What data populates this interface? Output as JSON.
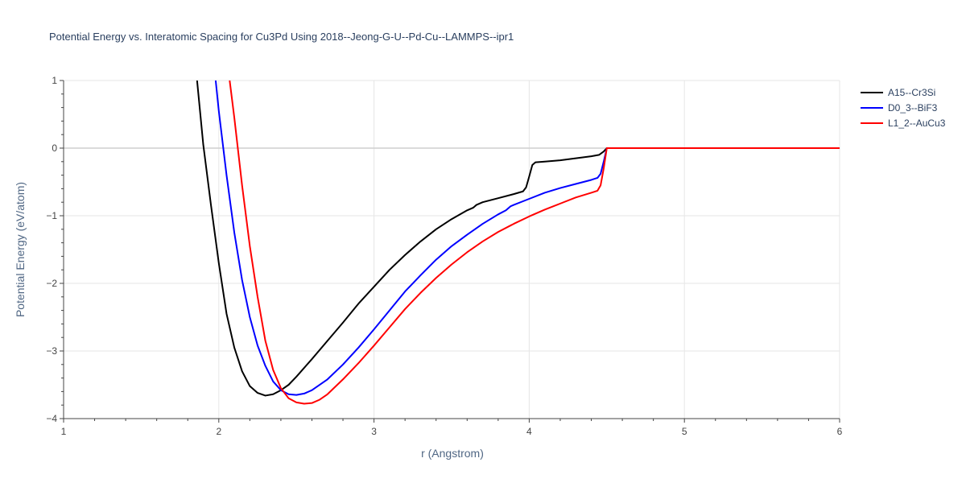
{
  "chart_data": {
    "type": "line",
    "title": "Potential Energy vs. Interatomic Spacing for Cu3Pd Using 2018--Jeong-G-U--Pd-Cu--LAMMPS--ipr1",
    "xlabel": "r (Angstrom)",
    "ylabel": "Potential Energy (eV/atom)",
    "xlim": [
      1,
      6
    ],
    "ylim": [
      -4,
      1
    ],
    "xticks": [
      1,
      2,
      3,
      4,
      5,
      6
    ],
    "yticks": [
      1,
      0,
      -1,
      -2,
      -3,
      -4
    ],
    "xtick_labels": [
      "1",
      "2",
      "3",
      "4",
      "5",
      "6"
    ],
    "ytick_labels": [
      "1",
      "0",
      "−1",
      "−2",
      "−3",
      "−4"
    ],
    "grid": true,
    "legend_position": "top-right",
    "series": [
      {
        "name": "A15--Cr3Si",
        "color": "#000000",
        "x": [
          1.86,
          1.9,
          1.95,
          2.0,
          2.05,
          2.1,
          2.15,
          2.2,
          2.25,
          2.3,
          2.35,
          2.4,
          2.45,
          2.5,
          2.6,
          2.7,
          2.8,
          2.9,
          3.0,
          3.1,
          3.2,
          3.3,
          3.4,
          3.5,
          3.6,
          3.64,
          3.66,
          3.7,
          3.8,
          3.9,
          3.96,
          3.98,
          4.0,
          4.02,
          4.04,
          4.1,
          4.2,
          4.3,
          4.4,
          4.45,
          4.48,
          4.5,
          5.0,
          5.5,
          6.0
        ],
        "y": [
          1.0,
          0.05,
          -0.85,
          -1.7,
          -2.45,
          -2.95,
          -3.3,
          -3.52,
          -3.62,
          -3.66,
          -3.64,
          -3.58,
          -3.5,
          -3.38,
          -3.12,
          -2.85,
          -2.58,
          -2.3,
          -2.05,
          -1.8,
          -1.58,
          -1.38,
          -1.2,
          -1.05,
          -0.92,
          -0.88,
          -0.84,
          -0.8,
          -0.74,
          -0.68,
          -0.64,
          -0.58,
          -0.42,
          -0.25,
          -0.21,
          -0.2,
          -0.18,
          -0.15,
          -0.12,
          -0.1,
          -0.05,
          0.0,
          0.0,
          0.0,
          0.0
        ]
      },
      {
        "name": "D0_3--BiF3",
        "color": "#0000ff",
        "x": [
          1.98,
          2.0,
          2.05,
          2.1,
          2.15,
          2.2,
          2.25,
          2.3,
          2.35,
          2.4,
          2.45,
          2.5,
          2.55,
          2.6,
          2.7,
          2.8,
          2.9,
          3.0,
          3.1,
          3.2,
          3.3,
          3.4,
          3.5,
          3.6,
          3.7,
          3.8,
          3.85,
          3.88,
          3.9,
          4.0,
          4.1,
          4.2,
          4.3,
          4.4,
          4.44,
          4.46,
          4.48,
          4.5,
          5.0,
          5.5,
          6.0
        ],
        "y": [
          1.0,
          0.55,
          -0.4,
          -1.25,
          -1.95,
          -2.5,
          -2.92,
          -3.22,
          -3.45,
          -3.58,
          -3.64,
          -3.65,
          -3.63,
          -3.58,
          -3.42,
          -3.2,
          -2.95,
          -2.68,
          -2.4,
          -2.12,
          -1.88,
          -1.65,
          -1.45,
          -1.28,
          -1.12,
          -0.98,
          -0.92,
          -0.86,
          -0.84,
          -0.75,
          -0.66,
          -0.59,
          -0.53,
          -0.47,
          -0.44,
          -0.38,
          -0.2,
          0.0,
          0.0,
          0.0,
          0.0
        ]
      },
      {
        "name": "L1_2--AuCu3",
        "color": "#ff0000",
        "x": [
          2.07,
          2.1,
          2.15,
          2.2,
          2.25,
          2.3,
          2.35,
          2.4,
          2.45,
          2.5,
          2.55,
          2.6,
          2.65,
          2.7,
          2.8,
          2.9,
          3.0,
          3.1,
          3.2,
          3.3,
          3.4,
          3.5,
          3.6,
          3.7,
          3.8,
          3.9,
          4.0,
          4.1,
          4.2,
          4.3,
          4.4,
          4.44,
          4.46,
          4.48,
          4.5,
          5.0,
          5.5,
          6.0
        ],
        "y": [
          1.0,
          0.45,
          -0.55,
          -1.45,
          -2.2,
          -2.85,
          -3.28,
          -3.55,
          -3.7,
          -3.76,
          -3.78,
          -3.77,
          -3.72,
          -3.64,
          -3.42,
          -3.18,
          -2.92,
          -2.65,
          -2.38,
          -2.14,
          -1.92,
          -1.72,
          -1.54,
          -1.38,
          -1.24,
          -1.12,
          -1.01,
          -0.91,
          -0.82,
          -0.73,
          -0.66,
          -0.63,
          -0.55,
          -0.3,
          0.0,
          0.0,
          0.0,
          0.0
        ]
      }
    ]
  }
}
